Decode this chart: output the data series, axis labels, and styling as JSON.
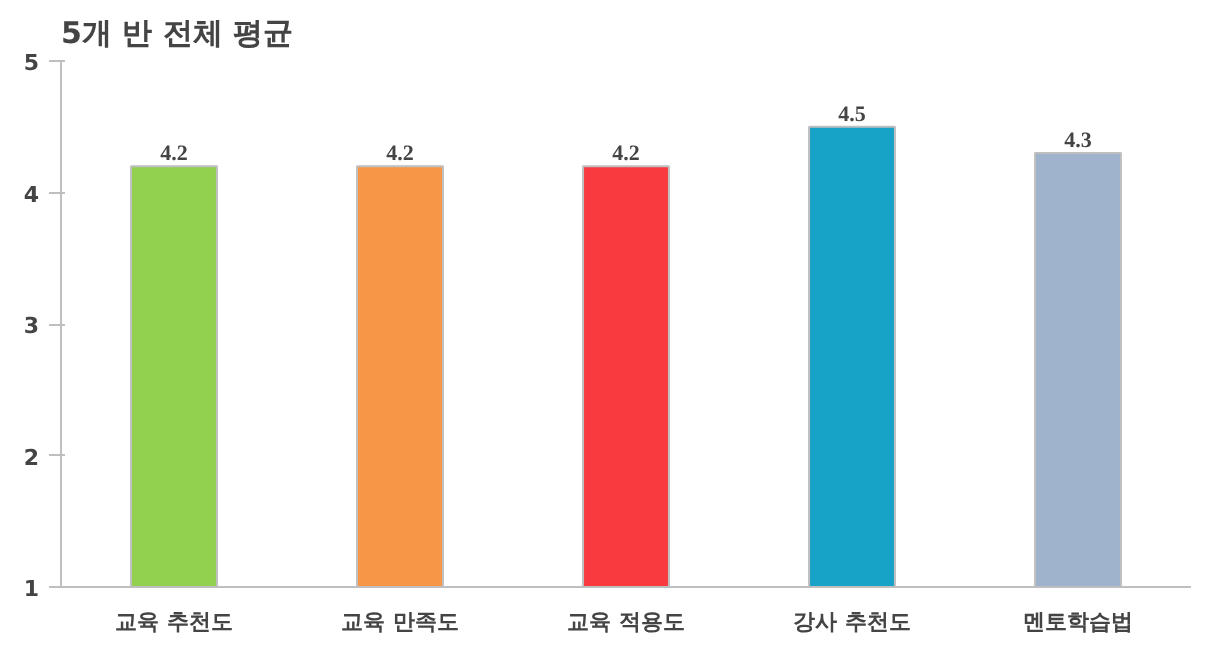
{
  "chart_data": {
    "type": "bar",
    "title": "5개 반 전체 평균",
    "categories": [
      "교육 추천도",
      "교육 만족도",
      "교육 적용도",
      "강사 추천도",
      "멘토학습법"
    ],
    "values": [
      4.2,
      4.2,
      4.2,
      4.5,
      4.3
    ],
    "colors": [
      "#92d050",
      "#f79646",
      "#f93a3f",
      "#17a2c8",
      "#9fb3cc"
    ],
    "ylim": [
      1,
      5
    ],
    "yticks": [
      1,
      2,
      3,
      4,
      5
    ],
    "grid": false,
    "data_labels": true
  }
}
